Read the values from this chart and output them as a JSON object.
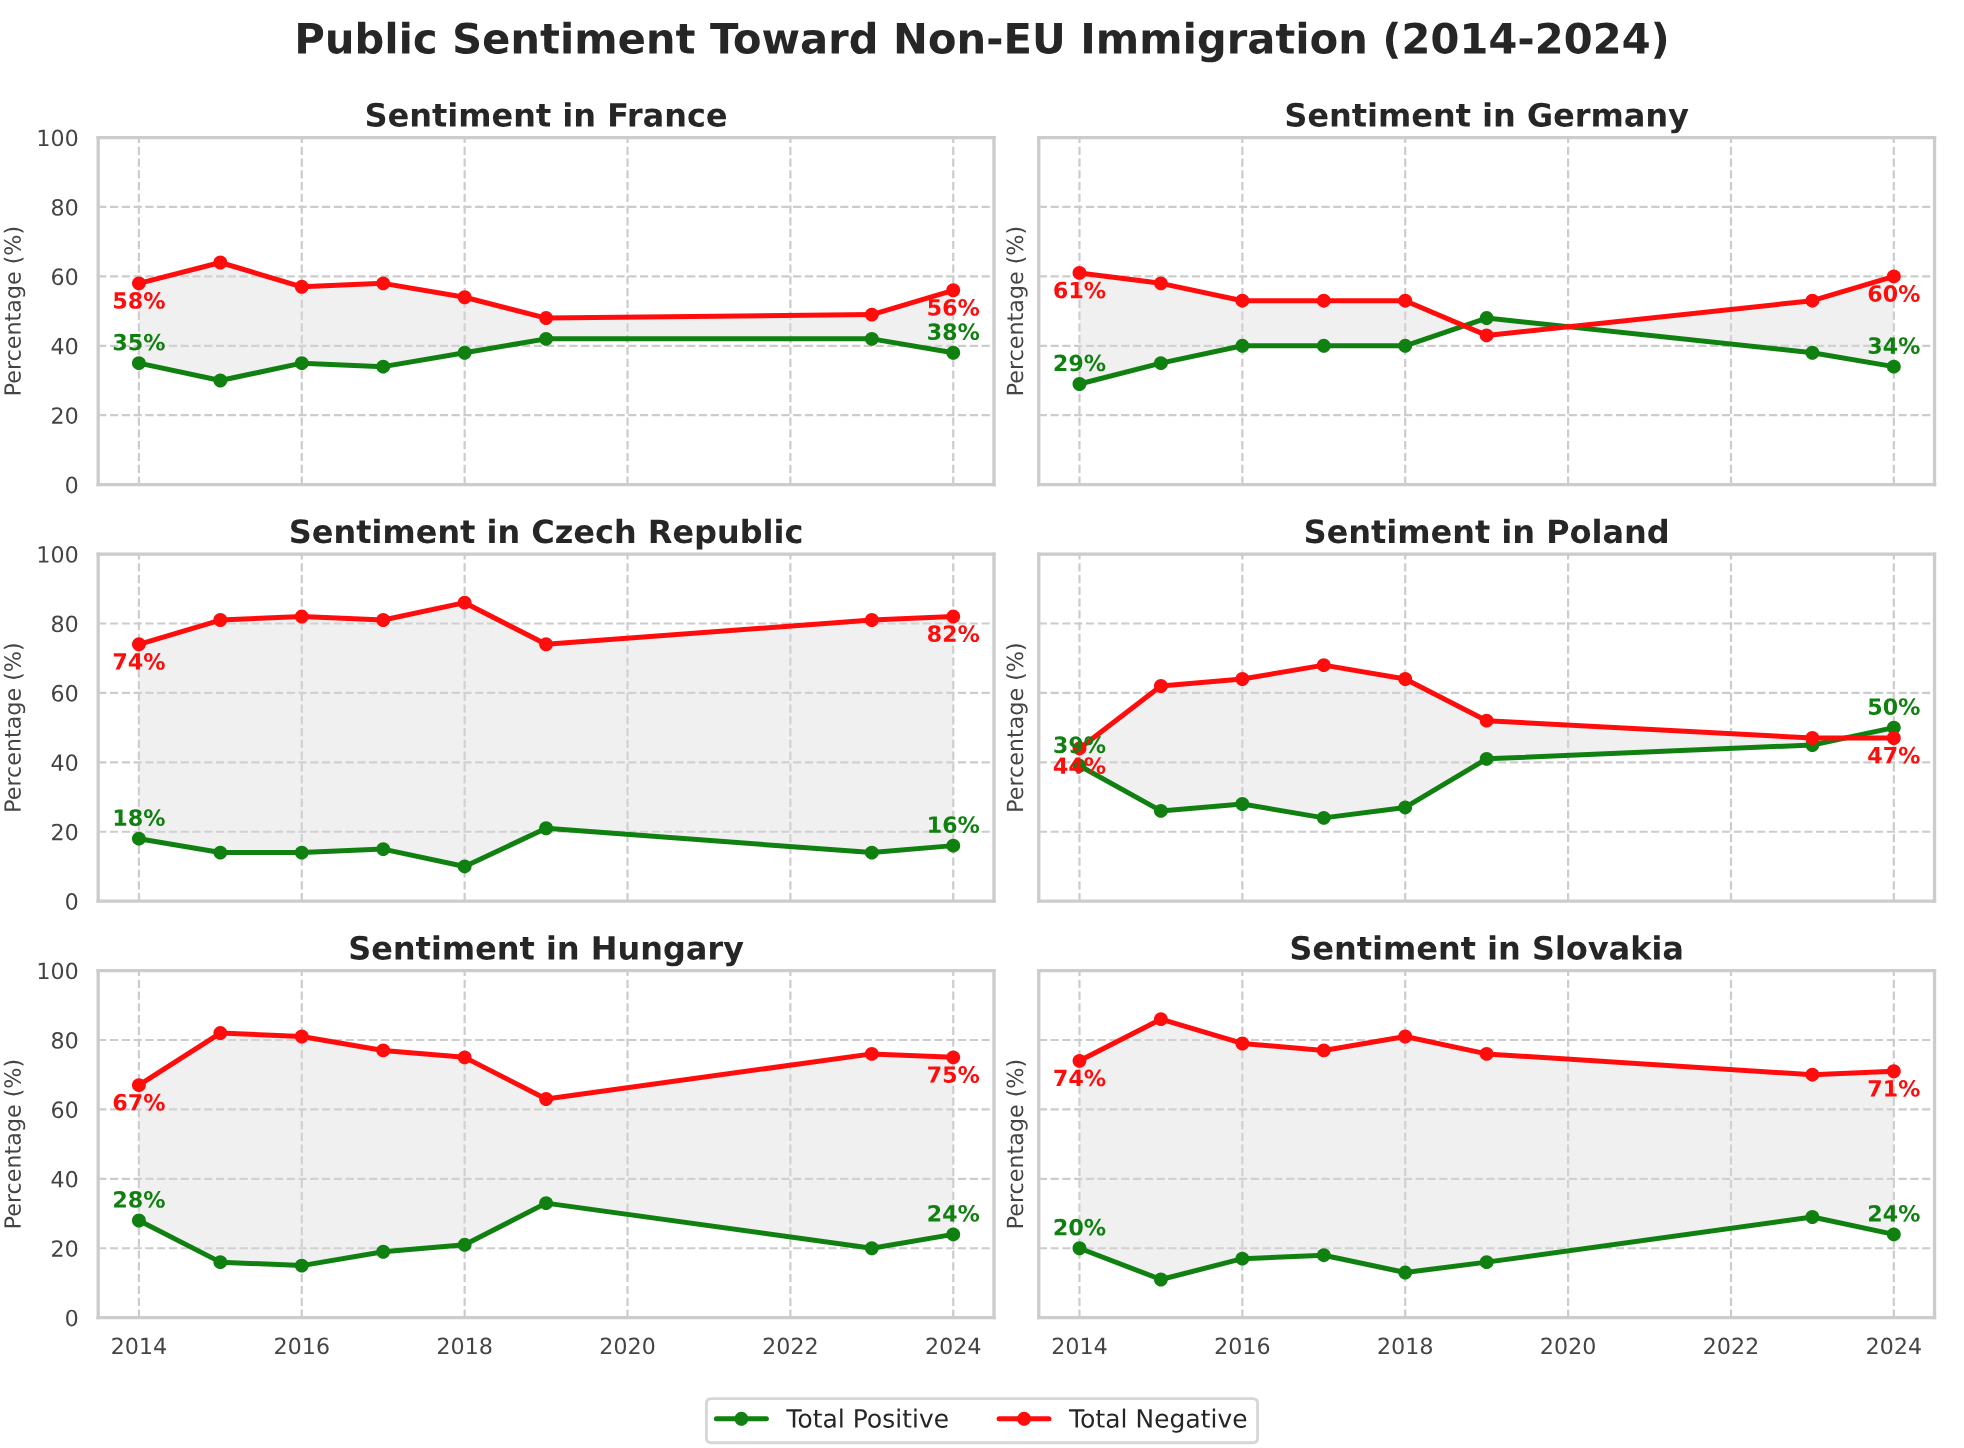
{
  "chart_data": [
    {
      "type": "line",
      "title": "Sentiment in France",
      "ylabel": "Percentage (%)",
      "annotations": [
        "Public Sentiment Toward Non-EU Immigration (2014-2024)"
      ],
      "x": [
        2014,
        2015,
        2016,
        2017,
        2018,
        2019,
        2023,
        2024
      ],
      "xlim": [
        2013.5,
        2024.5
      ],
      "xticks": [
        2014,
        2016,
        2018,
        2020,
        2022,
        2024
      ],
      "ylim": [
        0,
        100
      ],
      "yticks": [
        0,
        20,
        40,
        60,
        80,
        100
      ],
      "tick_labels": "y",
      "grid": true,
      "legend": "bottom",
      "marker": "circle",
      "line_style": "solid",
      "series": [
        {
          "name": "Total Positive",
          "color": "#108010",
          "values": [
            35,
            30,
            35,
            34,
            38,
            42,
            42,
            38
          ],
          "value_labels": [
            "35%",
            null,
            null,
            null,
            null,
            null,
            null,
            "38%"
          ]
        },
        {
          "name": "Total Negative",
          "color": "#ff0d0d",
          "values": [
            58,
            64,
            57,
            58,
            54,
            48,
            49,
            56
          ],
          "lower": [
            35,
            30,
            35,
            34,
            38,
            42,
            42,
            38
          ],
          "upper": [
            58,
            64,
            57,
            58,
            54,
            48,
            49,
            56
          ],
          "value_labels": [
            "58%",
            null,
            null,
            null,
            null,
            null,
            null,
            "56%"
          ]
        }
      ]
    },
    {
      "type": "line",
      "title": "Sentiment in Germany",
      "ylabel": "Percentage (%)",
      "x": [
        2014,
        2015,
        2016,
        2017,
        2018,
        2019,
        2023,
        2024
      ],
      "xlim": [
        2013.5,
        2024.5
      ],
      "xticks": [
        2014,
        2016,
        2018,
        2020,
        2022,
        2024
      ],
      "ylim": [
        0,
        100
      ],
      "yticks": [
        0,
        20,
        40,
        60,
        80,
        100
      ],
      "tick_labels": false,
      "grid": true,
      "marker": "circle",
      "line_style": "solid",
      "series": [
        {
          "color": "#108010",
          "values": [
            29,
            35,
            40,
            40,
            40,
            48,
            38,
            34
          ],
          "value_labels": [
            "29%",
            null,
            null,
            null,
            null,
            null,
            null,
            "34%"
          ]
        },
        {
          "color": "#ff0d0d",
          "values": [
            61,
            58,
            53,
            53,
            53,
            43,
            53,
            60
          ],
          "lower": [
            29,
            35,
            40,
            40,
            40,
            48,
            38,
            34
          ],
          "upper": [
            61,
            58,
            53,
            53,
            53,
            43,
            53,
            60
          ],
          "value_labels": [
            "61%",
            null,
            null,
            null,
            null,
            null,
            null,
            "60%"
          ]
        }
      ]
    },
    {
      "type": "line",
      "title": "Sentiment in Czech Republic",
      "ylabel": "Percentage (%)",
      "x": [
        2014,
        2015,
        2016,
        2017,
        2018,
        2019,
        2023,
        2024
      ],
      "xlim": [
        2013.5,
        2024.5
      ],
      "xticks": [
        2014,
        2016,
        2018,
        2020,
        2022,
        2024
      ],
      "ylim": [
        0,
        100
      ],
      "yticks": [
        0,
        20,
        40,
        60,
        80,
        100
      ],
      "tick_labels": "y",
      "grid": true,
      "marker": "circle",
      "line_style": "solid",
      "series": [
        {
          "color": "#108010",
          "values": [
            18,
            14,
            14,
            15,
            10,
            21,
            14,
            16
          ],
          "value_labels": [
            "18%",
            null,
            null,
            null,
            null,
            null,
            null,
            "16%"
          ]
        },
        {
          "color": "#ff0d0d",
          "values": [
            74,
            81,
            82,
            81,
            86,
            74,
            81,
            82
          ],
          "lower": [
            18,
            14,
            14,
            15,
            10,
            21,
            14,
            16
          ],
          "upper": [
            74,
            81,
            82,
            81,
            86,
            74,
            81,
            82
          ],
          "value_labels": [
            "74%",
            null,
            null,
            null,
            null,
            null,
            null,
            "82%"
          ]
        }
      ]
    },
    {
      "type": "line",
      "title": "Sentiment in Poland",
      "ylabel": "Percentage (%)",
      "x": [
        2014,
        2015,
        2016,
        2017,
        2018,
        2019,
        2023,
        2024
      ],
      "xlim": [
        2013.5,
        2024.5
      ],
      "xticks": [
        2014,
        2016,
        2018,
        2020,
        2022,
        2024
      ],
      "ylim": [
        0,
        100
      ],
      "yticks": [
        0,
        20,
        40,
        60,
        80,
        100
      ],
      "tick_labels": false,
      "grid": true,
      "marker": "circle",
      "line_style": "solid",
      "series": [
        {
          "color": "#108010",
          "values": [
            39,
            26,
            28,
            24,
            27,
            41,
            45,
            50
          ],
          "value_labels": [
            "39%",
            null,
            null,
            null,
            null,
            null,
            null,
            "50%"
          ]
        },
        {
          "color": "#ff0d0d",
          "values": [
            44,
            62,
            64,
            68,
            64,
            52,
            47,
            47
          ],
          "lower": [
            39,
            26,
            28,
            24,
            27,
            41,
            45,
            50
          ],
          "upper": [
            44,
            62,
            64,
            68,
            64,
            52,
            47,
            47
          ],
          "value_labels": [
            "44%",
            null,
            null,
            null,
            null,
            null,
            null,
            "47%"
          ]
        }
      ]
    },
    {
      "type": "line",
      "title": "Sentiment in Hungary",
      "ylabel": "Percentage (%)",
      "x": [
        2014,
        2015,
        2016,
        2017,
        2018,
        2019,
        2023,
        2024
      ],
      "xlim": [
        2013.5,
        2024.5
      ],
      "xticks": [
        2014,
        2016,
        2018,
        2020,
        2022,
        2024
      ],
      "ylim": [
        0,
        100
      ],
      "yticks": [
        0,
        20,
        40,
        60,
        80,
        100
      ],
      "grid": true,
      "marker": "circle",
      "line_style": "solid",
      "series": [
        {
          "color": "#108010",
          "values": [
            28,
            16,
            15,
            19,
            21,
            33,
            20,
            24
          ],
          "value_labels": [
            "28%",
            null,
            null,
            null,
            null,
            null,
            null,
            "24%"
          ]
        },
        {
          "color": "#ff0d0d",
          "values": [
            67,
            82,
            81,
            77,
            75,
            63,
            76,
            75
          ],
          "lower": [
            28,
            16,
            15,
            19,
            21,
            33,
            20,
            24
          ],
          "upper": [
            67,
            82,
            81,
            77,
            75,
            63,
            76,
            75
          ],
          "value_labels": [
            "67%",
            null,
            null,
            null,
            null,
            null,
            null,
            "75%"
          ]
        }
      ]
    },
    {
      "type": "line",
      "title": "Sentiment in Slovakia",
      "ylabel": "Percentage (%)",
      "x": [
        2014,
        2015,
        2016,
        2017,
        2018,
        2019,
        2023,
        2024
      ],
      "xlim": [
        2013.5,
        2024.5
      ],
      "xticks": [
        2014,
        2016,
        2018,
        2020,
        2022,
        2024
      ],
      "ylim": [
        0,
        100
      ],
      "yticks": [
        0,
        20,
        40,
        60,
        80,
        100
      ],
      "tick_labels": "x",
      "grid": true,
      "marker": "circle",
      "line_style": "solid",
      "series": [
        {
          "color": "#108010",
          "values": [
            20,
            11,
            17,
            18,
            13,
            16,
            29,
            24
          ],
          "value_labels": [
            "20%",
            null,
            null,
            null,
            null,
            null,
            null,
            "24%"
          ]
        },
        {
          "color": "#ff0d0d",
          "values": [
            74,
            86,
            79,
            77,
            81,
            76,
            70,
            71
          ],
          "lower": [
            20,
            11,
            17,
            18,
            13,
            16,
            29,
            24
          ],
          "upper": [
            74,
            86,
            79,
            77,
            81,
            76,
            70,
            71
          ],
          "value_labels": [
            "74%",
            null,
            null,
            null,
            null,
            null,
            null,
            "71%"
          ]
        }
      ]
    }
  ]
}
